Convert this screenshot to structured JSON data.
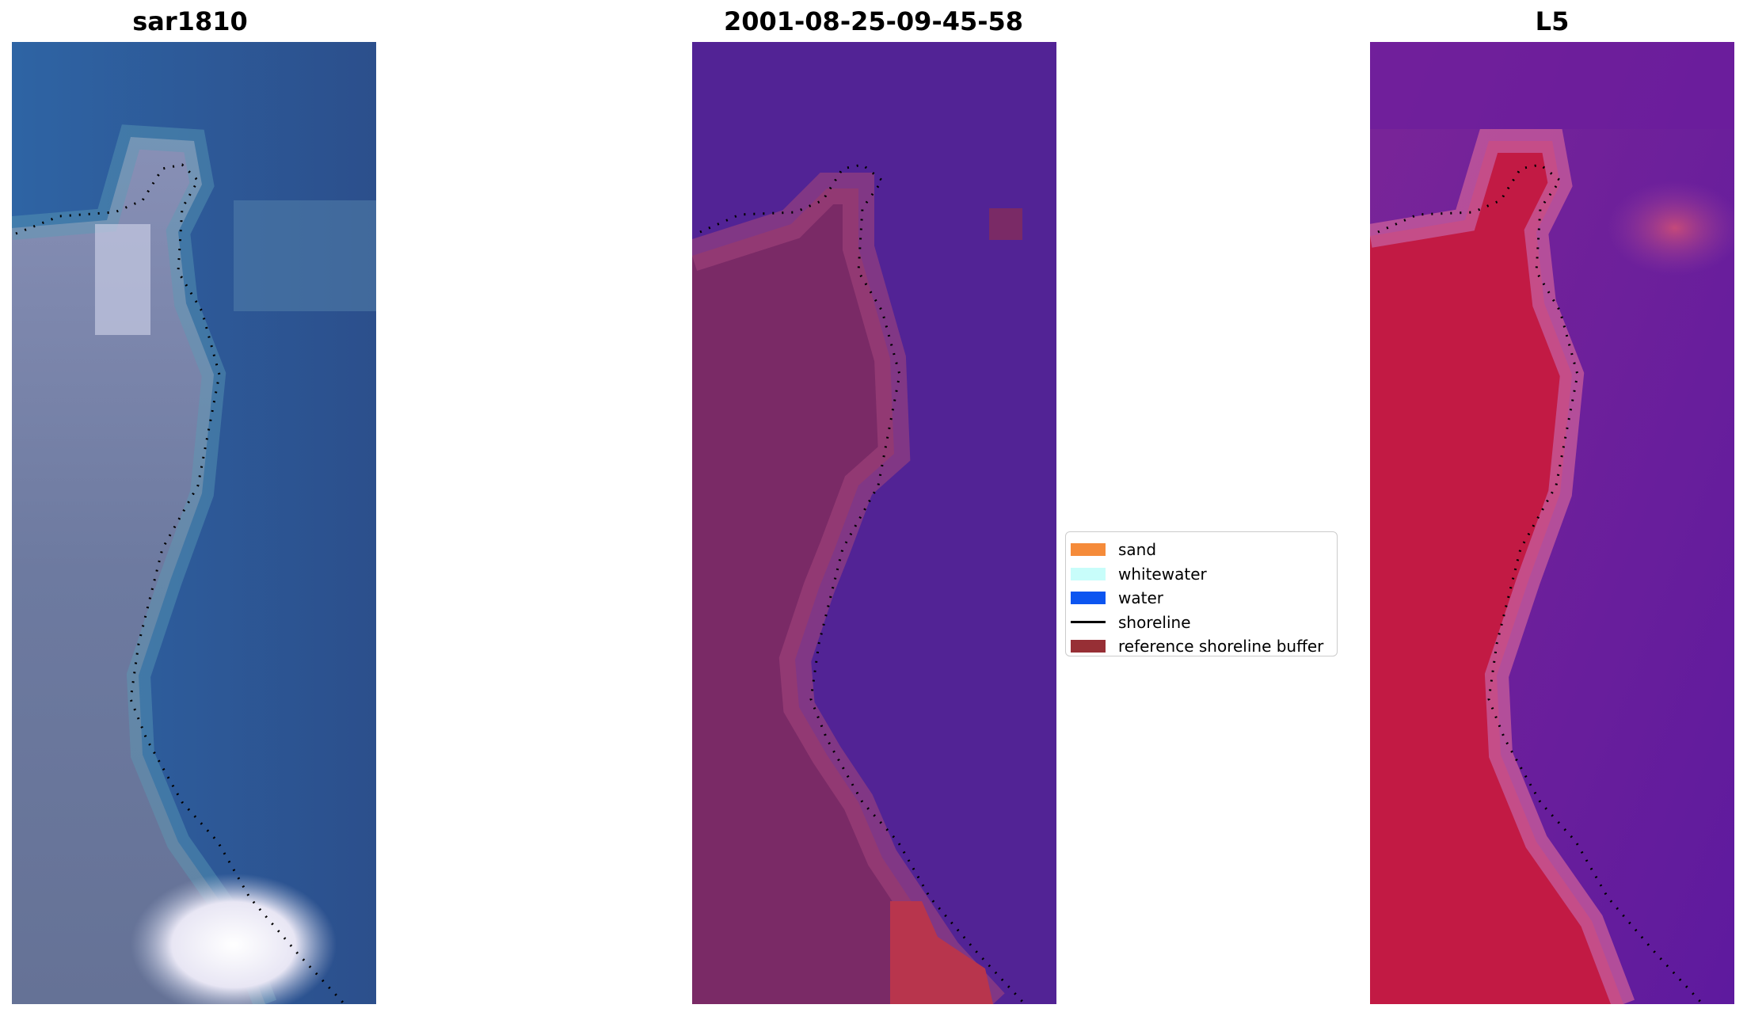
{
  "panels": [
    {
      "title": "sar1810"
    },
    {
      "title": "2001-08-25-09-45-58"
    },
    {
      "title": "L5"
    }
  ],
  "legend": {
    "items": [
      {
        "label": "sand",
        "kind": "patch",
        "color": "#f58b3a"
      },
      {
        "label": "whitewater",
        "kind": "patch",
        "color": "#c8fdfa"
      },
      {
        "label": "water",
        "kind": "patch",
        "color": "#0c55f0"
      },
      {
        "label": "shoreline",
        "kind": "line",
        "color": "#000000"
      },
      {
        "label": "reference shoreline buffer",
        "kind": "patch",
        "color": "#972f35"
      }
    ]
  },
  "colors": {
    "rgb_water": "#2d5f9b",
    "rgb_land": "#6f7aa0",
    "rgb_surf": "#f2f0f8",
    "class_water": "#522395",
    "class_land": "#7a2a66",
    "class_buffer": "#b8354d",
    "mndwi_water": "#6e22a0",
    "mndwi_land": "#c0133f",
    "shoreline_dots": "#000000"
  }
}
